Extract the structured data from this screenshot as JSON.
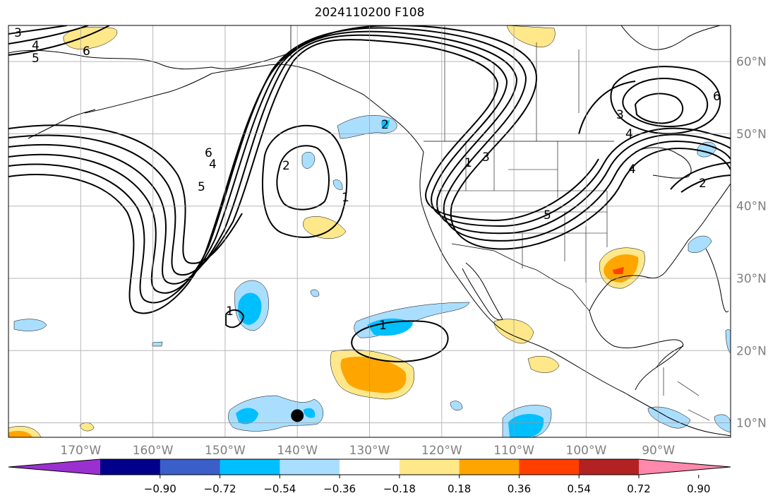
{
  "title": "2024110200 F108",
  "map": {
    "extent": {
      "lon_min": -180,
      "lon_max": -80,
      "lat_min": 8,
      "lat_max": 65
    },
    "lon_ticks": [
      {
        "lon": -170,
        "label": "170°W"
      },
      {
        "lon": -160,
        "label": "160°W"
      },
      {
        "lon": -150,
        "label": "150°W"
      },
      {
        "lon": -140,
        "label": "140°W"
      },
      {
        "lon": -130,
        "label": "130°W"
      },
      {
        "lon": -120,
        "label": "120°W"
      },
      {
        "lon": -110,
        "label": "110°W"
      },
      {
        "lon": -100,
        "label": "100°W"
      },
      {
        "lon": -90,
        "label": "90°W"
      }
    ],
    "lat_ticks": [
      {
        "lat": 60,
        "label": "60°N"
      },
      {
        "lat": 50,
        "label": "50°N"
      },
      {
        "lat": 40,
        "label": "40°N"
      },
      {
        "lat": 30,
        "label": "30°N"
      },
      {
        "lat": 20,
        "label": "20°N"
      },
      {
        "lat": 10,
        "label": "10°N"
      }
    ],
    "contour_labels": [
      "1",
      "2",
      "3",
      "4",
      "5",
      "6"
    ],
    "marker": {
      "lon": -140,
      "lat": 11,
      "color": "#000000"
    }
  },
  "colorbar": {
    "colors": [
      "#9b30d0",
      "#00008b",
      "#3b5fc8",
      "#00bfff",
      "#aadeff",
      "#ffffff",
      "#ffe88a",
      "#ffa500",
      "#ff3f00",
      "#b22222",
      "#ff89ad"
    ],
    "tick_labels": [
      "−0.90",
      "−0.72",
      "−0.54",
      "−0.36",
      "−0.18",
      "0.18",
      "0.36",
      "0.54",
      "0.72",
      "0.90"
    ]
  }
}
